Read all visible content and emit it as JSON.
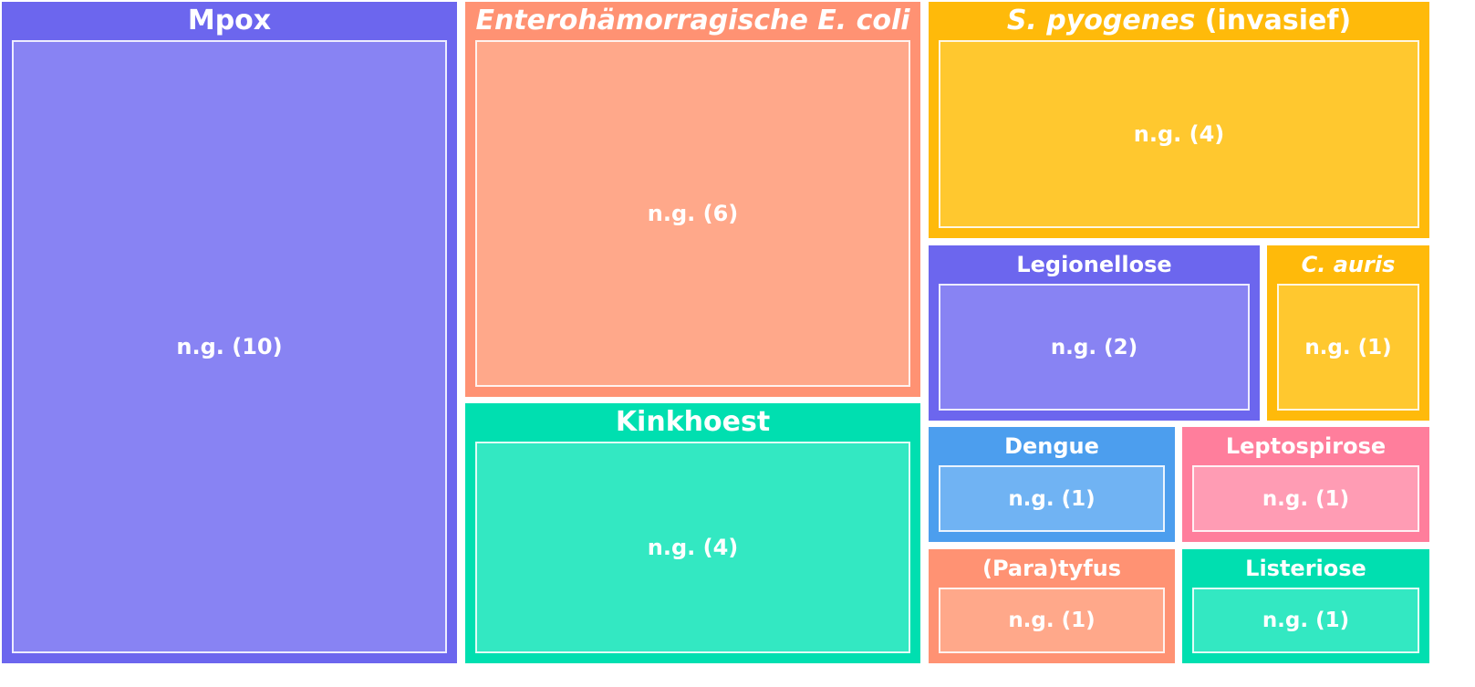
{
  "chart_data": {
    "type": "treemap",
    "items": [
      {
        "name": "Mpox",
        "name_parts": [
          {
            "text": "Mpox",
            "italic": false
          }
        ],
        "value": 10,
        "label": "n.g. (10)",
        "color": "#6C66EE",
        "fill": "#8883F3"
      },
      {
        "name": "Enterohämorragische E. coli",
        "name_parts": [
          {
            "text": "Enterohämorragische E. coli",
            "italic": true
          }
        ],
        "value": 6,
        "label": "n.g. (6)",
        "color": "#FF9273",
        "fill": "#FFA88A"
      },
      {
        "name": "S. pyogenes (invasief)",
        "name_parts": [
          {
            "text": "S. pyogenes",
            "italic": true
          },
          {
            "text": " (invasief)",
            "italic": false
          }
        ],
        "value": 4,
        "label": "n.g. (4)",
        "color": "#FFBA0A",
        "fill": "#FFC82F"
      },
      {
        "name": "Kinkhoest",
        "name_parts": [
          {
            "text": "Kinkhoest",
            "italic": false
          }
        ],
        "value": 4,
        "label": "n.g. (4)",
        "color": "#00DFB0",
        "fill": "#33E8C2"
      },
      {
        "name": "Legionellose",
        "name_parts": [
          {
            "text": "Legionellose",
            "italic": false
          }
        ],
        "value": 2,
        "label": "n.g. (2)",
        "color": "#6C66EE",
        "fill": "#8883F3"
      },
      {
        "name": "C. auris",
        "name_parts": [
          {
            "text": "C. auris",
            "italic": true
          }
        ],
        "value": 1,
        "label": "n.g. (1)",
        "color": "#FFBA0A",
        "fill": "#FFC82F"
      },
      {
        "name": "Dengue",
        "name_parts": [
          {
            "text": "Dengue",
            "italic": false
          }
        ],
        "value": 1,
        "label": "n.g. (1)",
        "color": "#4C9EEE",
        "fill": "#70B3F3"
      },
      {
        "name": "Leptospirose",
        "name_parts": [
          {
            "text": "Leptospirose",
            "italic": false
          }
        ],
        "value": 1,
        "label": "n.g. (1)",
        "color": "#FF7E9C",
        "fill": "#FF9CB4"
      },
      {
        "name": "(Para)tyfus",
        "name_parts": [
          {
            "text": "(Para)tyfus",
            "italic": false
          }
        ],
        "value": 1,
        "label": "n.g. (1)",
        "color": "#FF9273",
        "fill": "#FFA88A"
      },
      {
        "name": "Listeriose",
        "name_parts": [
          {
            "text": "Listeriose",
            "italic": false
          }
        ],
        "value": 1,
        "label": "n.g. (1)",
        "color": "#00DFB0",
        "fill": "#33E8C2"
      }
    ]
  }
}
